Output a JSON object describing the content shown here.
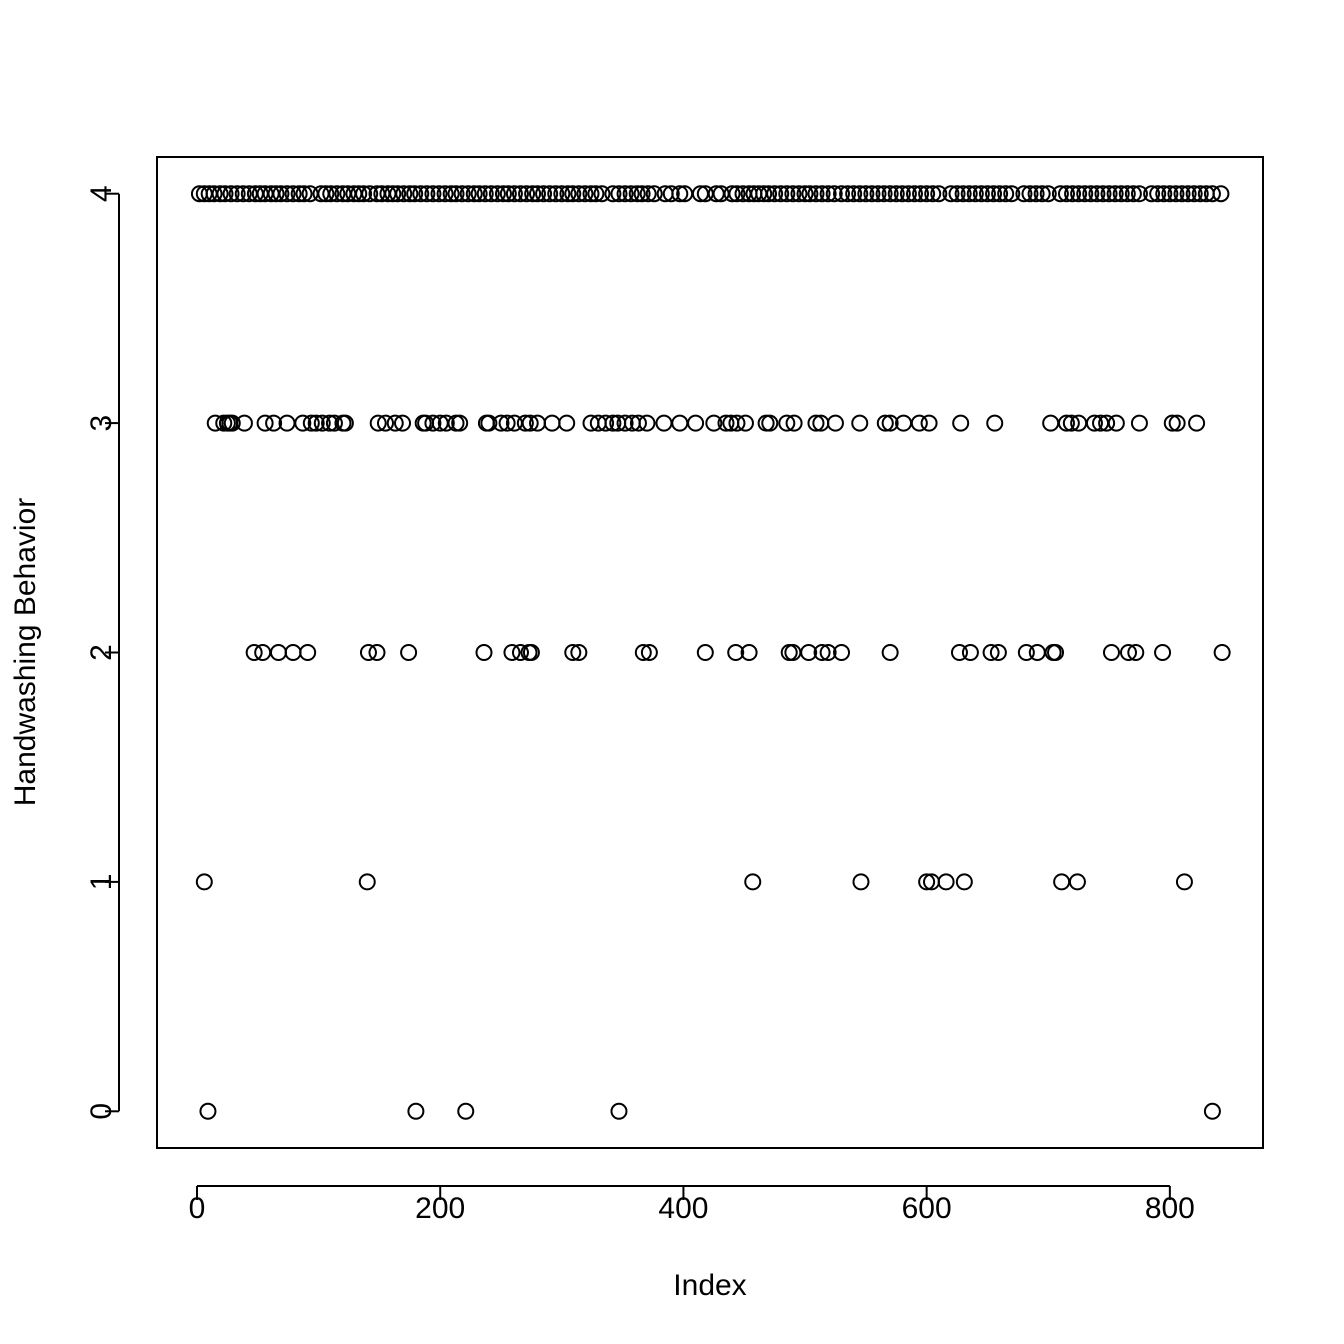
{
  "chart_data": {
    "type": "scatter",
    "xlabel": "Index",
    "ylabel": "Handwashing Behavior",
    "color": "#000000",
    "xlim": [
      -32.9,
      876.6
    ],
    "ylim": [
      -0.16,
      4.16
    ],
    "xticks": [
      0,
      200,
      400,
      600,
      800
    ],
    "yticks": [
      0,
      1,
      2,
      3,
      4
    ],
    "series": [
      {
        "x": [
          9,
          180,
          221,
          347,
          835
        ],
        "values": [
          0,
          0,
          0,
          0,
          0
        ]
      },
      {
        "x": [
          6,
          140,
          457,
          546,
          600,
          604,
          616,
          631,
          711,
          724,
          812
        ],
        "values": [
          1,
          1,
          1,
          1,
          1,
          1,
          1,
          1,
          1,
          1,
          1
        ]
      },
      {
        "x": [
          47,
          54,
          67,
          79,
          91,
          141,
          148,
          174,
          236,
          259,
          266,
          273,
          275,
          309,
          314,
          367,
          372,
          418,
          443,
          454,
          487,
          490,
          503,
          514,
          519,
          530,
          570,
          627,
          636,
          653,
          659,
          682,
          691,
          704,
          706,
          752,
          766,
          772,
          794,
          843
        ],
        "values": [
          2,
          2,
          2,
          2,
          2,
          2,
          2,
          2,
          2,
          2,
          2,
          2,
          2,
          2,
          2,
          2,
          2,
          2,
          2,
          2,
          2,
          2,
          2,
          2,
          2,
          2,
          2,
          2,
          2,
          2,
          2,
          2,
          2,
          2,
          2,
          2,
          2,
          2,
          2,
          2
        ]
      },
      {
        "x": [
          15,
          22,
          25,
          27,
          29,
          39,
          56,
          63,
          74,
          87,
          94,
          98,
          103,
          109,
          113,
          120,
          122,
          149,
          155,
          163,
          169,
          186,
          188,
          194,
          200,
          205,
          213,
          216,
          238,
          240,
          250,
          255,
          261,
          270,
          274,
          280,
          292,
          304,
          324,
          330,
          336,
          342,
          346,
          352,
          358,
          363,
          370,
          384,
          397,
          410,
          425,
          435,
          439,
          444,
          451,
          468,
          471,
          485,
          491,
          509,
          513,
          525,
          545,
          566,
          570,
          581,
          594,
          602,
          628,
          656,
          702,
          715,
          719,
          725,
          738,
          743,
          748,
          756,
          775,
          802,
          806,
          822
        ],
        "values": [
          3,
          3,
          3,
          3,
          3,
          3,
          3,
          3,
          3,
          3,
          3,
          3,
          3,
          3,
          3,
          3,
          3,
          3,
          3,
          3,
          3,
          3,
          3,
          3,
          3,
          3,
          3,
          3,
          3,
          3,
          3,
          3,
          3,
          3,
          3,
          3,
          3,
          3,
          3,
          3,
          3,
          3,
          3,
          3,
          3,
          3,
          3,
          3,
          3,
          3,
          3,
          3,
          3,
          3,
          3,
          3,
          3,
          3,
          3,
          3,
          3,
          3,
          3,
          3,
          3,
          3,
          3,
          3,
          3,
          3,
          3,
          3,
          3,
          3,
          3,
          3,
          3,
          3,
          3,
          3,
          3,
          3
        ]
      },
      {
        "x": [
          2,
          6,
          10,
          14,
          19,
          23,
          28,
          33,
          38,
          43,
          48,
          52,
          56,
          61,
          65,
          69,
          74,
          79,
          84,
          88,
          93,
          102,
          106,
          110,
          115,
          120,
          124,
          129,
          133,
          137,
          142,
          148,
          152,
          157,
          161,
          165,
          170,
          175,
          179,
          184,
          189,
          194,
          199,
          204,
          209,
          213,
          218,
          223,
          228,
          232,
          237,
          242,
          247,
          252,
          256,
          261,
          266,
          271,
          276,
          280,
          285,
          290,
          295,
          300,
          305,
          309,
          314,
          319,
          324,
          328,
          333,
          342,
          347,
          352,
          357,
          362,
          366,
          371,
          376,
          385,
          390,
          397,
          401,
          414,
          418,
          427,
          431,
          440,
          444,
          449,
          454,
          458,
          462,
          466,
          470,
          475,
          480,
          485,
          490,
          495,
          500,
          504,
          509,
          514,
          519,
          524,
          530,
          535,
          540,
          545,
          550,
          555,
          560,
          565,
          570,
          575,
          580,
          585,
          590,
          595,
          600,
          605,
          610,
          620,
          625,
          630,
          635,
          640,
          645,
          650,
          655,
          660,
          665,
          670,
          680,
          685,
          690,
          695,
          700,
          710,
          715,
          720,
          725,
          730,
          735,
          740,
          745,
          750,
          755,
          760,
          765,
          770,
          775,
          785,
          790,
          795,
          800,
          805,
          810,
          815,
          820,
          825,
          830,
          835,
          842
        ],
        "values": [
          4,
          4,
          4,
          4,
          4,
          4,
          4,
          4,
          4,
          4,
          4,
          4,
          4,
          4,
          4,
          4,
          4,
          4,
          4,
          4,
          4,
          4,
          4,
          4,
          4,
          4,
          4,
          4,
          4,
          4,
          4,
          4,
          4,
          4,
          4,
          4,
          4,
          4,
          4,
          4,
          4,
          4,
          4,
          4,
          4,
          4,
          4,
          4,
          4,
          4,
          4,
          4,
          4,
          4,
          4,
          4,
          4,
          4,
          4,
          4,
          4,
          4,
          4,
          4,
          4,
          4,
          4,
          4,
          4,
          4,
          4,
          4,
          4,
          4,
          4,
          4,
          4,
          4,
          4,
          4,
          4,
          4,
          4,
          4,
          4,
          4,
          4,
          4,
          4,
          4,
          4,
          4,
          4,
          4,
          4,
          4,
          4,
          4,
          4,
          4,
          4,
          4,
          4,
          4,
          4,
          4,
          4,
          4,
          4,
          4,
          4,
          4,
          4,
          4,
          4,
          4,
          4,
          4,
          4,
          4,
          4,
          4,
          4,
          4,
          4,
          4,
          4,
          4,
          4,
          4,
          4,
          4,
          4,
          4,
          4,
          4,
          4,
          4,
          4,
          4,
          4,
          4,
          4,
          4,
          4,
          4,
          4,
          4,
          4,
          4,
          4,
          4,
          4,
          4,
          4,
          4,
          4,
          4,
          4,
          4,
          4,
          4,
          4,
          4,
          4
        ]
      }
    ]
  }
}
